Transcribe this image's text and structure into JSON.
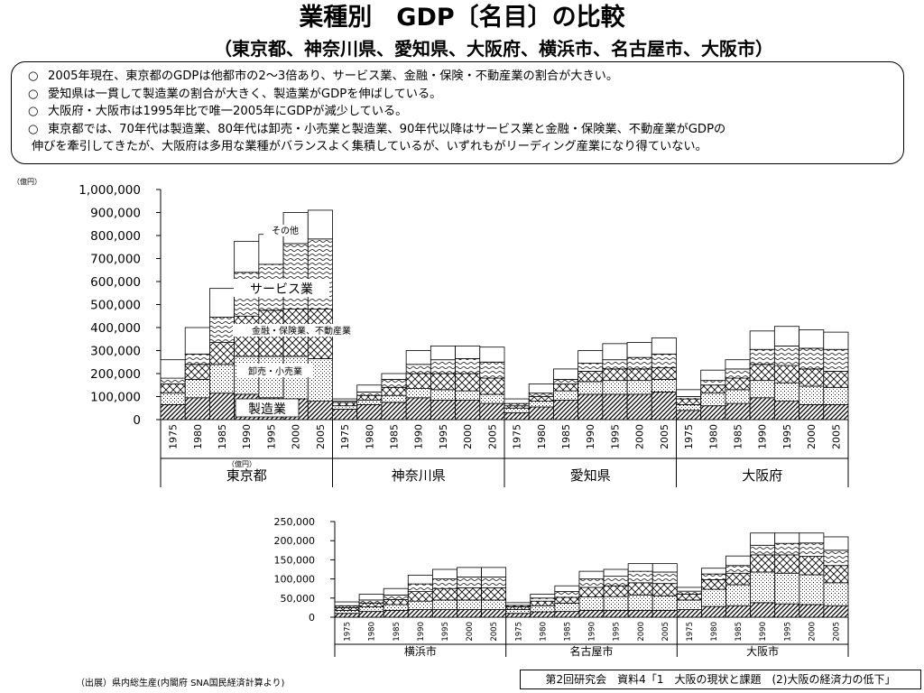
{
  "title": "業種別　GDP〔名目〕の比較",
  "subtitle": "（東京都、神奈川県、愛知県、大阪府、横浜市、名古屋市、大阪市）",
  "summary": {
    "bullet_mark": "○",
    "points": [
      "2005年現在、東京都のGDPは他都市の2～3倍あり、サービス業、金融・保険・不動産業の割合が大きい。",
      "愛知県は一貫して製造業の割合が大きく、製造業がGDPを伸ばしている。",
      "大阪府・大阪市は1995年比で唯一2005年にGDPが減少している。",
      "東京都では、70年代は製造業、80年代は卸売・小売業と製造業、90年代以降はサービス業と金融・保険業、不動産業がGDPの"
    ],
    "continuation": "伸びを牽引してきたが、大阪府は多用な業種がバランスよく集積しているが、いずれもがリーディング産業になり得ていない。"
  },
  "colors": {
    "line": "#000000",
    "background": "#ffffff"
  },
  "chart_data": [
    {
      "type": "bar",
      "stacked": true,
      "unit_label": "（億円）",
      "x_tick_labels": [
        "1975",
        "1980",
        "1985",
        "1990",
        "1995",
        "2000",
        "2005"
      ],
      "groups": [
        "東京都",
        "神奈川県",
        "愛知県",
        "大阪府"
      ],
      "ylim": [
        0,
        1000000
      ],
      "y_ticks": [
        0,
        100000,
        200000,
        300000,
        400000,
        500000,
        600000,
        700000,
        800000,
        900000,
        1000000
      ],
      "y_tick_labels": [
        "0",
        "100,000",
        "200,000",
        "300,000",
        "400,000",
        "500,000",
        "600,000",
        "700,000",
        "800,000",
        "900,000",
        "1,000,000"
      ],
      "annotations": {
        "manufacturing": "製造業",
        "wholesale": "卸売・小売業",
        "finance": "金融・保険業、不動産業",
        "service": "サービス業",
        "other": "その他"
      },
      "layer_order": [
        "manufacturing",
        "wholesale",
        "finance",
        "service",
        "other"
      ],
      "data": {
        "東京都": {
          "manufacturing": [
            65000,
            95000,
            115000,
            110000,
            95000,
            90000,
            80000
          ],
          "wholesale": [
            50000,
            80000,
            125000,
            165000,
            180000,
            185000,
            185000
          ],
          "finance": [
            40000,
            65000,
            95000,
            175000,
            200000,
            205000,
            215000
          ],
          "service": [
            25000,
            45000,
            110000,
            190000,
            200000,
            285000,
            305000
          ],
          "other": [
            80000,
            115000,
            125000,
            135000,
            130000,
            135000,
            125000
          ]
        },
        "神奈川県": {
          "manufacturing": [
            45000,
            65000,
            75000,
            95000,
            85000,
            85000,
            70000
          ],
          "wholesale": [
            15000,
            20000,
            30000,
            40000,
            45000,
            40000,
            40000
          ],
          "finance": [
            15000,
            20000,
            35000,
            65000,
            70000,
            75000,
            70000
          ],
          "service": [
            5000,
            15000,
            35000,
            40000,
            60000,
            65000,
            70000
          ],
          "other": [
            10000,
            30000,
            25000,
            60000,
            60000,
            55000,
            65000
          ]
        },
        "愛知県": {
          "manufacturing": [
            30000,
            55000,
            85000,
            110000,
            110000,
            110000,
            120000
          ],
          "wholesale": [
            20000,
            25000,
            40000,
            55000,
            60000,
            60000,
            55000
          ],
          "finance": [
            10000,
            20000,
            30000,
            45000,
            50000,
            50000,
            50000
          ],
          "service": [
            10000,
            15000,
            20000,
            35000,
            40000,
            50000,
            60000
          ],
          "other": [
            20000,
            40000,
            45000,
            55000,
            70000,
            65000,
            70000
          ]
        },
        "大阪府": {
          "manufacturing": [
            40000,
            60000,
            70000,
            95000,
            80000,
            65000,
            65000
          ],
          "wholesale": [
            25000,
            55000,
            60000,
            75000,
            80000,
            80000,
            75000
          ],
          "finance": [
            25000,
            35000,
            50000,
            70000,
            75000,
            75000,
            70000
          ],
          "service": [
            10000,
            20000,
            40000,
            65000,
            85000,
            90000,
            95000
          ],
          "other": [
            30000,
            45000,
            40000,
            80000,
            85000,
            80000,
            75000
          ]
        }
      }
    },
    {
      "type": "bar",
      "stacked": true,
      "unit_label": "（億円）",
      "x_tick_labels": [
        "1975",
        "1980",
        "1985",
        "1990",
        "1995",
        "2000",
        "2005"
      ],
      "groups": [
        "横浜市",
        "名古屋市",
        "大阪市"
      ],
      "ylim": [
        0,
        250000
      ],
      "y_ticks": [
        0,
        50000,
        100000,
        150000,
        200000,
        250000
      ],
      "y_tick_labels": [
        "0",
        "50,000",
        "100,000",
        "150,000",
        "200,000",
        "250,000"
      ],
      "layer_order": [
        "manufacturing",
        "wholesale",
        "finance",
        "service",
        "other"
      ],
      "data": {
        "横浜市": {
          "manufacturing": [
            10000,
            15000,
            18000,
            20000,
            20000,
            20000,
            20000
          ],
          "wholesale": [
            8000,
            12000,
            15000,
            22000,
            25000,
            25000,
            25000
          ],
          "finance": [
            7000,
            10000,
            13000,
            25000,
            30000,
            32000,
            32000
          ],
          "service": [
            5000,
            8000,
            12000,
            20000,
            25000,
            28000,
            28000
          ],
          "other": [
            10000,
            15000,
            17000,
            23000,
            25000,
            25000,
            25000
          ]
        },
        "名古屋市": {
          "manufacturing": [
            10000,
            14000,
            15000,
            18000,
            18000,
            18000,
            18000
          ],
          "wholesale": [
            10000,
            16000,
            22000,
            35000,
            36000,
            40000,
            38000
          ],
          "finance": [
            7000,
            12000,
            15000,
            25000,
            28000,
            32000,
            32000
          ],
          "service": [
            4000,
            8000,
            15000,
            22000,
            25000,
            30000,
            30000
          ],
          "other": [
            7000,
            10000,
            15000,
            20000,
            18000,
            20000,
            22000
          ]
        },
        "大阪市": {
          "manufacturing": [
            20000,
            28000,
            30000,
            38000,
            35000,
            33000,
            30000
          ],
          "wholesale": [
            25000,
            45000,
            55000,
            80000,
            80000,
            78000,
            60000
          ],
          "finance": [
            15000,
            25000,
            30000,
            45000,
            48000,
            48000,
            45000
          ],
          "service": [
            8000,
            15000,
            20000,
            25000,
            30000,
            35000,
            40000
          ],
          "other": [
            10000,
            15000,
            25000,
            32000,
            27000,
            26000,
            35000
          ]
        }
      }
    }
  ],
  "source": "（出展）県内総生産(内閣府 SNA国民経済計算より)",
  "footer": "第2回研究会　資料4「1　大阪の現状と課題　(2)大阪の経済力の低下」"
}
